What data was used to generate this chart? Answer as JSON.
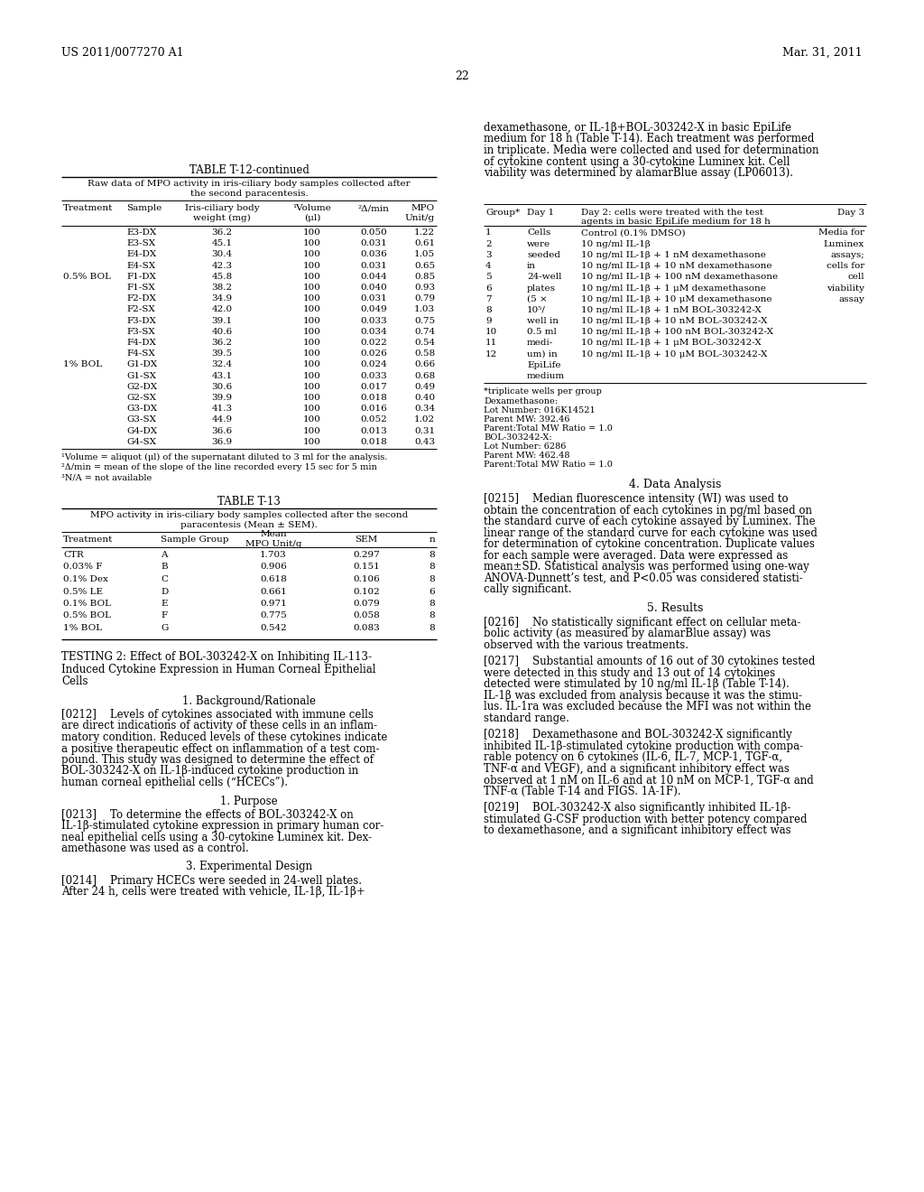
{
  "page_number": "22",
  "header_left": "US 2011/0077270 A1",
  "header_right": "Mar. 31, 2011",
  "background_color": "#ffffff",
  "text_color": "#000000",
  "table1_title": "TABLE T-12-continued",
  "table1_subtitle1": "Raw data of MPO activity in iris-ciliary body samples collected after",
  "table1_subtitle2": "the second paracentesis.",
  "table1_col1": [
    "E3-DX",
    "E3-SX",
    "E4-DX",
    "E4-SX",
    "F1-DX",
    "F1-SX",
    "F2-DX",
    "F2-SX",
    "F3-DX",
    "F3-SX",
    "F4-DX",
    "F4-SX",
    "G1-DX",
    "G1-SX",
    "G2-DX",
    "G2-SX",
    "G3-DX",
    "G3-SX",
    "G4-DX",
    "G4-SX"
  ],
  "table1_col2": [
    "36.2",
    "45.1",
    "30.4",
    "42.3",
    "45.8",
    "38.2",
    "34.9",
    "42.0",
    "39.1",
    "40.6",
    "36.2",
    "39.5",
    "32.4",
    "43.1",
    "30.6",
    "39.9",
    "41.3",
    "44.9",
    "36.6",
    "36.9"
  ],
  "table1_col3": [
    "100",
    "100",
    "100",
    "100",
    "100",
    "100",
    "100",
    "100",
    "100",
    "100",
    "100",
    "100",
    "100",
    "100",
    "100",
    "100",
    "100",
    "100",
    "100",
    "100"
  ],
  "table1_col4": [
    "0.050",
    "0.031",
    "0.036",
    "0.031",
    "0.044",
    "0.040",
    "0.031",
    "0.049",
    "0.033",
    "0.034",
    "0.022",
    "0.026",
    "0.024",
    "0.033",
    "0.017",
    "0.018",
    "0.016",
    "0.052",
    "0.013",
    "0.018"
  ],
  "table1_col5": [
    "1.22",
    "0.61",
    "1.05",
    "0.65",
    "0.85",
    "0.93",
    "0.79",
    "1.03",
    "0.75",
    "0.74",
    "0.54",
    "0.58",
    "0.66",
    "0.68",
    "0.49",
    "0.40",
    "0.34",
    "1.02",
    "0.31",
    "0.43"
  ],
  "table1_treatment_labels": {
    "4": "0.5% BOL",
    "12": "1% BOL"
  },
  "table1_footnotes": [
    "¹Volume = aliquot (μl) of the supernatant diluted to 3 ml for the analysis.",
    "²Δ/min = mean of the slope of the line recorded every 15 sec for 5 min",
    "³N/A = not available"
  ],
  "table2_title": "TABLE T-13",
  "table2_sub1": "MPO activity in iris-ciliary body samples collected after the second",
  "table2_sub2": "paracentesis (Mean ± SEM).",
  "table2_data": [
    [
      "CTR",
      "A",
      "1.703",
      "0.297",
      "8"
    ],
    [
      "0.03% F",
      "B",
      "0.906",
      "0.151",
      "8"
    ],
    [
      "0.1% Dex",
      "C",
      "0.618",
      "0.106",
      "8"
    ],
    [
      "0.5% LE",
      "D",
      "0.661",
      "0.102",
      "6"
    ],
    [
      "0.1% BOL",
      "E",
      "0.971",
      "0.079",
      "8"
    ],
    [
      "0.5% BOL",
      "F",
      "0.775",
      "0.058",
      "8"
    ],
    [
      "1% BOL",
      "G",
      "0.542",
      "0.083",
      "8"
    ]
  ],
  "right_para_lines": [
    "dexamethasone, or IL-1β+BOL-303242-X in basic EpiLife",
    "medium for 18 h (Table T-14). Each treatment was performed",
    "in triplicate. Media were collected and used for determination",
    "of cytokine content using a 30-cytokine Luminex kit. Cell",
    "viability was determined by alamarBlue assay (LP06013)."
  ],
  "table3_day1_nums": [
    "1",
    "2",
    "3",
    "4",
    "5",
    "6",
    "7",
    "8",
    "9",
    "10",
    "11",
    "12"
  ],
  "table3_day1_text": [
    "Cells",
    "were",
    "seeded",
    "in",
    "24-well",
    "plates",
    "(5 ×",
    "10⁵/",
    "well in",
    "0.5 ml",
    "medi-",
    "um) in"
  ],
  "table3_day1_extra": [
    "EpiLife",
    "medium"
  ],
  "table3_day2": [
    "Control (0.1% DMSO)",
    "10 ng/ml IL-1β",
    "10 ng/ml IL-1β + 1 nM dexamethasone",
    "10 ng/ml IL-1β + 10 nM dexamethasone",
    "10 ng/ml IL-1β + 100 nM dexamethasone",
    "10 ng/ml IL-1β + 1 μM dexamethasone",
    "10 ng/ml IL-1β + 10 μM dexamethasone",
    "10 ng/ml IL-1β + 1 nM BOL-303242-X",
    "10 ng/ml IL-1β + 10 nM BOL-303242-X",
    "10 ng/ml IL-1β + 100 nM BOL-303242-X",
    "10 ng/ml IL-1β + 1 μM BOL-303242-X",
    "10 ng/ml IL-1β + 10 μM BOL-303242-X"
  ],
  "table3_day3": [
    "Media for",
    "Luminex",
    "assays;",
    "cells for",
    "cell",
    "viability",
    "assay"
  ],
  "table3_footnote": "*triplicate wells per group",
  "table3_footnote_lines": [
    "Dexamethasone:",
    "Lot Number: 016K14521",
    "Parent MW: 392.46",
    "Parent:Total MW Ratio = 1.0",
    "BOL-303242-X:",
    "Lot Number: 6286",
    "Parent MW: 462.48",
    "Parent:Total MW Ratio = 1.0"
  ],
  "section_testing2_lines": [
    "TESTING 2: Effect of BOL-303242-X on Inhibiting IL-113-",
    "Induced Cytokine Expression in Human Corneal Epithelial",
    "Cells"
  ],
  "sec1_title": "1. Background/Rationale",
  "para0212_lines": [
    "[0212]    Levels of cytokines associated with immune cells",
    "are direct indications of activity of these cells in an inflam-",
    "matory condition. Reduced levels of these cytokines indicate",
    "a positive therapeutic effect on inflammation of a test com-",
    "pound. This study was designed to determine the effect of",
    "BOL-303242-X on IL-1β-induced cytokine production in",
    "human corneal epithelial cells (“HCECs”)."
  ],
  "sec2_title": "1. Purpose",
  "para0213_lines": [
    "[0213]    To determine the effects of BOL-303242-X on",
    "IL-1β-stimulated cytokine expression in primary human cor-",
    "neal epithelial cells using a 30-cytokine Luminex kit. Dex-",
    "amethasone was used as a control."
  ],
  "sec3_title": "3. Experimental Design",
  "para0214_lines": [
    "[0214]    Primary HCECs were seeded in 24-well plates.",
    "After 24 h, cells were treated with vehicle, IL-1β, IL-1β+"
  ],
  "sec4_title": "4. Data Analysis",
  "para0215_lines": [
    "[0215]    Median fluorescence intensity (WI) was used to",
    "obtain the concentration of each cytokines in pg/ml based on",
    "the standard curve of each cytokine assayed by Luminex. The",
    "linear range of the standard curve for each cytokine was used",
    "for determination of cytokine concentration. Duplicate values",
    "for each sample were averaged. Data were expressed as",
    "mean±SD. Statistical analysis was performed using one-way",
    "ANOVA-Dunnett’s test, and P<0.05 was considered statisti-",
    "cally significant."
  ],
  "sec5_title": "5. Results",
  "para0216_lines": [
    "[0216]    No statistically significant effect on cellular meta-",
    "bolic activity (as measured by alamarBlue assay) was",
    "observed with the various treatments."
  ],
  "para0217_lines": [
    "[0217]    Substantial amounts of 16 out of 30 cytokines tested",
    "were detected in this study and 13 out of 14 cytokines",
    "detected were stimulated by 10 ng/ml IL-1β (Table T-14).",
    "IL-1β was excluded from analysis because it was the stimu-",
    "lus. IL-1ra was excluded because the MFI was not within the",
    "standard range."
  ],
  "para0218_lines": [
    "[0218]    Dexamethasone and BOL-303242-X significantly",
    "inhibited IL-1β-stimulated cytokine production with compa-",
    "rable potency on 6 cytokines (IL-6, IL-7, MCP-1, TGF-α,",
    "TNF-α and VEGF), and a significant inhibitory effect was",
    "observed at 1 nM on IL-6 and at 10 nM on MCP-1, TGF-α and",
    "TNF-α (Table T-14 and FIGS. 1A-1F)."
  ],
  "para0219_lines": [
    "[0219]    BOL-303242-X also significantly inhibited IL-1β-",
    "stimulated G-CSF production with better potency compared",
    "to dexamethasone, and a significant inhibitory effect was"
  ]
}
